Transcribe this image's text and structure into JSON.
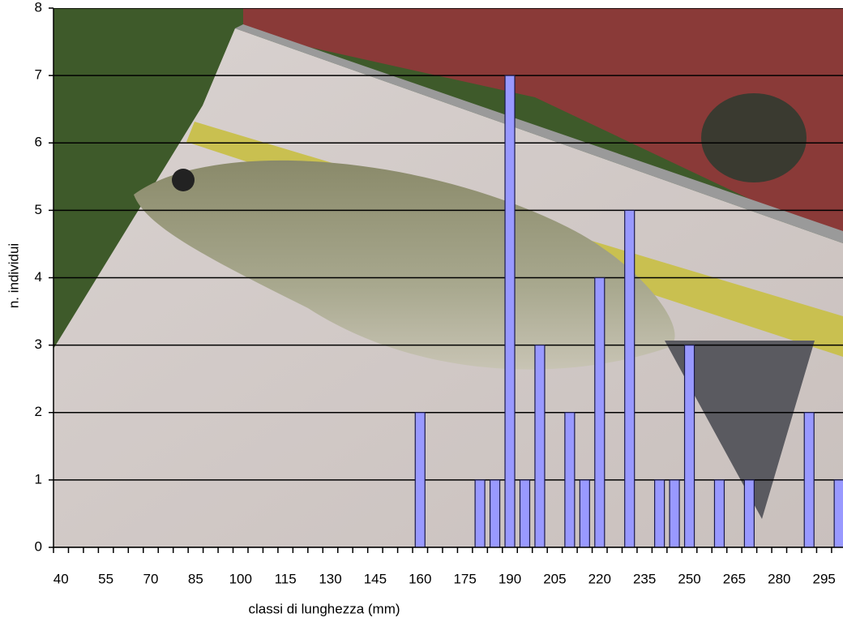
{
  "chart_data": {
    "type": "bar",
    "x_label": "classi di lunghezza (mm)",
    "y_label": "n. individui",
    "categories": [
      "40",
      null,
      null,
      "55",
      null,
      null,
      "70",
      null,
      null,
      "85",
      null,
      null,
      "100",
      null,
      null,
      "115",
      null,
      null,
      "130",
      null,
      null,
      "145",
      null,
      null,
      "160",
      null,
      null,
      "175",
      null,
      null,
      "190",
      null,
      null,
      "205",
      null,
      null,
      "220",
      null,
      null,
      "235",
      null,
      null,
      "250",
      null,
      null,
      "265",
      null,
      null,
      "280",
      null,
      null,
      "295",
      null
    ],
    "values": [
      0,
      0,
      0,
      0,
      0,
      0,
      0,
      0,
      0,
      0,
      0,
      0,
      0,
      0,
      0,
      0,
      0,
      0,
      0,
      0,
      0,
      0,
      0,
      0,
      2,
      0,
      0,
      0,
      1,
      1,
      7,
      1,
      3,
      0,
      2,
      1,
      4,
      0,
      5,
      0,
      1,
      1,
      3,
      0,
      1,
      0,
      1,
      0,
      0,
      0,
      2,
      0,
      1
    ],
    "color": "#9999ff",
    "ylim": [
      0,
      8
    ],
    "yticks": [
      0,
      1,
      2,
      3,
      4,
      5,
      6,
      7,
      8
    ],
    "grid": true
  }
}
